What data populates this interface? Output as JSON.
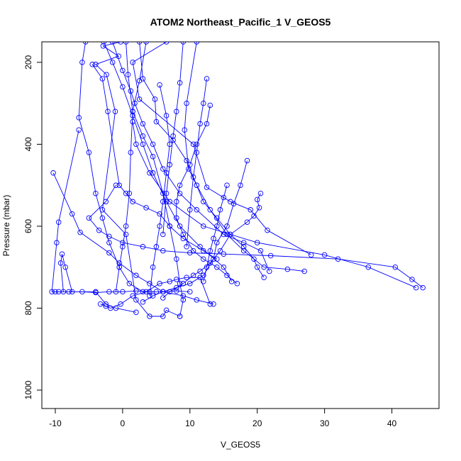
{
  "chart_data": {
    "type": "line",
    "title": "ATOM2 Northeast_Pacific_1 V_GEOS5",
    "xlabel": "V_GEOS5",
    "ylabel": "Pressure (mbar)",
    "xlim": [
      -12,
      47
    ],
    "ylim": [
      1045,
      150
    ],
    "y_reversed": true,
    "x_ticks": [
      -10,
      0,
      10,
      20,
      30,
      40
    ],
    "x_tick_labels": [
      "-10",
      "0",
      "10",
      "20",
      "30",
      "40"
    ],
    "y_ticks": [
      200,
      400,
      600,
      800,
      1000
    ],
    "y_tick_labels": [
      "200",
      "400",
      "600",
      "800",
      "1000"
    ],
    "grid": false,
    "series_color": "#0000ff",
    "marker": "open-circle",
    "series": [
      {
        "x": [
          -0.3,
          -2.9,
          -0.6,
          -4.0,
          -2.4,
          -1.1,
          -3.0,
          0.5,
          2.0,
          4.0,
          6.0,
          6.5,
          8.5
        ],
        "y": [
          150,
          160,
          185,
          205,
          230,
          320,
          560,
          620,
          780,
          820,
          820,
          805,
          820
        ]
      },
      {
        "x": [
          6.5,
          1.5,
          2.5,
          10.5,
          12.5,
          16.0,
          19.0,
          21.5,
          28.0
        ],
        "y": [
          150,
          200,
          290,
          400,
          505,
          540,
          560,
          610,
          670
        ]
      },
      {
        "x": [
          -6.5,
          -9.5,
          -9.8,
          -10.5,
          -9.5,
          -8.8,
          -9.2,
          -9.0,
          -8.5,
          -7.5,
          -4.0,
          -2.5,
          -1.0,
          2.0
        ],
        "y": [
          365,
          590,
          640,
          760,
          760,
          760,
          690,
          668,
          700,
          760,
          760,
          790,
          800,
          810
        ]
      },
      {
        "x": [
          -10.3,
          -7.5,
          -6.3,
          -2.0,
          -0.5,
          2.0,
          4.0,
          6.0,
          9.0,
          11.0,
          13.5
        ],
        "y": [
          470,
          570,
          615,
          665,
          690,
          720,
          740,
          760,
          770,
          780,
          790
        ]
      },
      {
        "x": [
          -4.5,
          -3.0,
          -2.2,
          -0.5,
          0.5,
          1.5,
          3.5,
          5.5,
          7.0,
          9.0,
          12.0,
          14.0
        ],
        "y": [
          205,
          240,
          320,
          500,
          520,
          540,
          555,
          570,
          600,
          630,
          660,
          680
        ]
      },
      {
        "x": [
          -1.5,
          0.0,
          1.2,
          1.8,
          3.0,
          4.5,
          6.0,
          8.5,
          11.0,
          15.0,
          18.0,
          20.5,
          21.8
        ],
        "y": [
          150,
          220,
          270,
          300,
          350,
          400,
          460,
          520,
          560,
          620,
          640,
          660,
          710
        ]
      },
      {
        "x": [
          2.5,
          3.0,
          4.8,
          5.0,
          7.5,
          9.5,
          11.0,
          13.0,
          15.5,
          18.0,
          21.0,
          24.5,
          27.0
        ],
        "y": [
          150,
          240,
          290,
          345,
          390,
          440,
          500,
          560,
          620,
          660,
          700,
          705,
          710
        ]
      },
      {
        "x": [
          11.0,
          9.5,
          9.2,
          9.8,
          11.0,
          12.0,
          14.0,
          16.0,
          18.0,
          19.5,
          20.0,
          21.0
        ],
        "y": [
          150,
          300,
          365,
          460,
          500,
          540,
          580,
          620,
          650,
          680,
          700,
          725
        ]
      },
      {
        "x": [
          13.0,
          12.5,
          11.0,
          10.0,
          8.5,
          8.0,
          8.0,
          9.0,
          10.5,
          12.0,
          14.0,
          15.5,
          17.0
        ],
        "y": [
          305,
          350,
          400,
          450,
          500,
          540,
          580,
          620,
          660,
          680,
          700,
          720,
          740
        ]
      },
      {
        "x": [
          18.5,
          17.5,
          16.5,
          15.5,
          14.0,
          13.5,
          12.0,
          10.0,
          8.0,
          6.0,
          4.5,
          3.0
        ],
        "y": [
          440,
          500,
          545,
          600,
          640,
          680,
          720,
          740,
          750,
          760,
          770,
          785
        ]
      },
      {
        "x": [
          20.5,
          20.0,
          20.3,
          19.5,
          18.5,
          16.0,
          14.5,
          13.0,
          11.5,
          10.5,
          9.0,
          7.0,
          6.0
        ],
        "y": [
          520,
          535,
          555,
          575,
          590,
          620,
          660,
          690,
          710,
          720,
          740,
          760,
          775
        ]
      },
      {
        "x": [
          -1.0,
          -2.5,
          -5.0,
          -3.5,
          -2.0,
          0.0,
          3.0,
          6.0,
          10.0,
          15.0,
          22.0,
          32.0,
          40.5,
          43.0,
          44.6
        ],
        "y": [
          500,
          540,
          580,
          610,
          625,
          640,
          650,
          660,
          665,
          668,
          672,
          680,
          700,
          730,
          750
        ]
      },
      {
        "x": [
          1.5,
          2.0,
          4.0,
          7.0,
          12.0,
          20.0,
          30.0,
          36.5,
          43.6
        ],
        "y": [
          345,
          400,
          470,
          540,
          600,
          640,
          670,
          700,
          750
        ]
      },
      {
        "x": [
          -5.5,
          -6.0,
          -6.5,
          -5.0,
          -4.0,
          -3.0,
          -2.0,
          -0.5,
          1.0,
          3.0,
          5.0
        ],
        "y": [
          150,
          200,
          335,
          420,
          520,
          580,
          640,
          700,
          740,
          760,
          760
        ]
      },
      {
        "x": [
          0.5,
          0.8,
          1.5,
          3.0,
          4.5,
          6.0,
          7.0,
          8.0,
          8.5,
          9.0,
          8.5
        ],
        "y": [
          150,
          230,
          320,
          380,
          430,
          520,
          600,
          680,
          740,
          780,
          820
        ]
      },
      {
        "x": [
          -3.3,
          -2.5,
          -1.8,
          -0.3,
          1.5,
          3.5,
          5.5,
          7.0,
          8.0,
          9.5,
          11.5,
          13.0
        ],
        "y": [
          790,
          795,
          800,
          790,
          770,
          760,
          740,
          735,
          730,
          725,
          725,
          790
        ]
      },
      {
        "x": [
          -10.0,
          -8.0,
          -6.0,
          -4.0,
          -2.0,
          0.0,
          2.0,
          4.0,
          6.0,
          8.0,
          10.0
        ],
        "y": [
          760,
          760,
          760,
          762,
          760,
          760,
          758,
          760,
          760,
          758,
          760
        ]
      },
      {
        "x": [
          3.5,
          2.5,
          1.5,
          1.2,
          1.0,
          0.5,
          0.0,
          -0.5,
          -1.0
        ],
        "y": [
          150,
          245,
          320,
          420,
          520,
          600,
          650,
          700,
          760
        ]
      },
      {
        "x": [
          5.5,
          6.5,
          7.0,
          6.5,
          6.0,
          5.5,
          5.0,
          4.5,
          4.0
        ],
        "y": [
          255,
          330,
          400,
          470,
          540,
          600,
          650,
          700,
          770
        ]
      },
      {
        "x": [
          9.0,
          8.5,
          8.0,
          7.5,
          7.0,
          6.5,
          6.0
        ],
        "y": [
          150,
          250,
          320,
          380,
          450,
          520,
          620
        ]
      },
      {
        "x": [
          12.5,
          12.0,
          11.5,
          11.0,
          10.5,
          10.0,
          9.5
        ],
        "y": [
          240,
          300,
          350,
          420,
          480,
          560,
          650
        ]
      },
      {
        "x": [
          15.5,
          15.0,
          14.5,
          14.0,
          13.5,
          13.0,
          12.5,
          12.0
        ],
        "y": [
          500,
          530,
          560,
          600,
          630,
          660,
          700,
          735
        ]
      },
      {
        "x": [
          -2.8,
          -1.5,
          0.0,
          1.5,
          3.0,
          4.5,
          6.5,
          8.5,
          11.5,
          15.0,
          16.2
        ],
        "y": [
          150,
          200,
          260,
          330,
          400,
          470,
          540,
          600,
          650,
          700,
          735
        ]
      }
    ]
  }
}
